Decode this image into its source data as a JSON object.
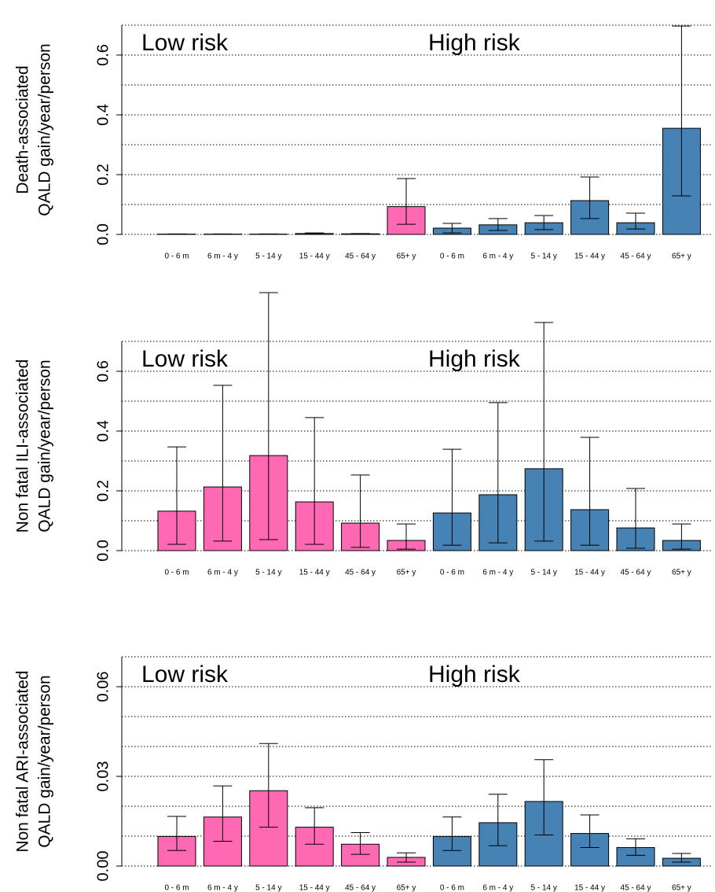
{
  "chart_data": [
    {
      "type": "bar",
      "ylabel": [
        "Death-associated",
        "QALD gain/year/person"
      ],
      "categories": [
        "0 - 6 m",
        "6 m - 4 y",
        "5 - 14 y",
        "15 - 44 y",
        "45 - 64 y",
        "65+ y"
      ],
      "series": [
        {
          "name": "Low risk",
          "color": "#ff69b4",
          "values": [
            0.001,
            0.001,
            0.001,
            0.003,
            0.002,
            0.093
          ],
          "lower": [
            0.0005,
            0.0005,
            0.0005,
            0.002,
            0.001,
            0.034
          ],
          "upper": [
            0.0015,
            0.0015,
            0.0015,
            0.005,
            0.003,
            0.187
          ]
        },
        {
          "name": "High risk",
          "color": "#4682b4",
          "values": [
            0.021,
            0.032,
            0.039,
            0.113,
            0.039,
            0.355
          ],
          "lower": [
            0.005,
            0.013,
            0.016,
            0.053,
            0.018,
            0.129
          ],
          "upper": [
            0.037,
            0.053,
            0.063,
            0.192,
            0.071,
            0.697
          ]
        }
      ],
      "ylim": [
        0,
        0.7
      ],
      "yticks": [
        {
          "value": 0,
          "label": "0.0"
        },
        0.2,
        0.4,
        0.6
      ],
      "yminor": [
        0.1,
        0.3,
        0.5,
        0.7
      ],
      "grid": true
    },
    {
      "type": "bar",
      "ylabel": [
        "Non fatal ILI-associated",
        "QALD gain/year/person"
      ],
      "categories": [
        "0 - 6 m",
        "6 m - 4 y",
        "5 - 14 y",
        "15 - 44 y",
        "45 - 64 y",
        "65+ y"
      ],
      "series": [
        {
          "name": "Low risk",
          "color": "#ff69b4",
          "values": [
            0.132,
            0.213,
            0.318,
            0.163,
            0.092,
            0.034
          ],
          "lower": [
            0.021,
            0.032,
            0.037,
            0.021,
            0.011,
            0.005
          ],
          "upper": [
            0.347,
            0.553,
            0.863,
            0.445,
            0.253,
            0.089
          ]
        },
        {
          "name": "High risk",
          "color": "#4682b4",
          "values": [
            0.126,
            0.187,
            0.274,
            0.137,
            0.076,
            0.034
          ],
          "lower": [
            0.018,
            0.026,
            0.032,
            0.018,
            0.008,
            0.005
          ],
          "upper": [
            0.339,
            0.495,
            0.763,
            0.379,
            0.208,
            0.089
          ]
        }
      ],
      "ylim": [
        0,
        0.7
      ],
      "yticks": [
        {
          "value": 0,
          "label": "0.0"
        },
        0.2,
        0.4,
        0.6
      ],
      "yminor": [
        0.1,
        0.3,
        0.5,
        0.7
      ],
      "grid": true
    },
    {
      "type": "bar",
      "ylabel": [
        "Non fatal ARI-associated",
        "QALD gain/year/person"
      ],
      "categories": [
        "0 - 6 m",
        "6 m - 4 y",
        "5 - 14 y",
        "15 - 44 y",
        "45 - 64 y",
        "65+ y"
      ],
      "series": [
        {
          "name": "Low risk",
          "color": "#ff69b4",
          "values": [
            0.0099,
            0.0164,
            0.0252,
            0.013,
            0.0073,
            0.0029
          ],
          "lower": [
            0.0052,
            0.0083,
            0.013,
            0.0073,
            0.0039,
            0.0013
          ],
          "upper": [
            0.0166,
            0.0268,
            0.041,
            0.0195,
            0.0112,
            0.0044
          ]
        },
        {
          "name": "High risk",
          "color": "#4682b4",
          "values": [
            0.0099,
            0.0145,
            0.0216,
            0.0109,
            0.0062,
            0.0026
          ],
          "lower": [
            0.0052,
            0.0068,
            0.0104,
            0.0062,
            0.0036,
            0.0013
          ],
          "upper": [
            0.0164,
            0.024,
            0.0356,
            0.0171,
            0.0091,
            0.0042
          ]
        }
      ],
      "ylim": [
        0,
        0.07
      ],
      "yticks": [
        {
          "value": 0,
          "label": "0.00"
        },
        0.03,
        0.06
      ],
      "yminor": [
        0.01,
        0.02,
        0.04,
        0.05,
        0.07
      ],
      "grid": true
    }
  ]
}
